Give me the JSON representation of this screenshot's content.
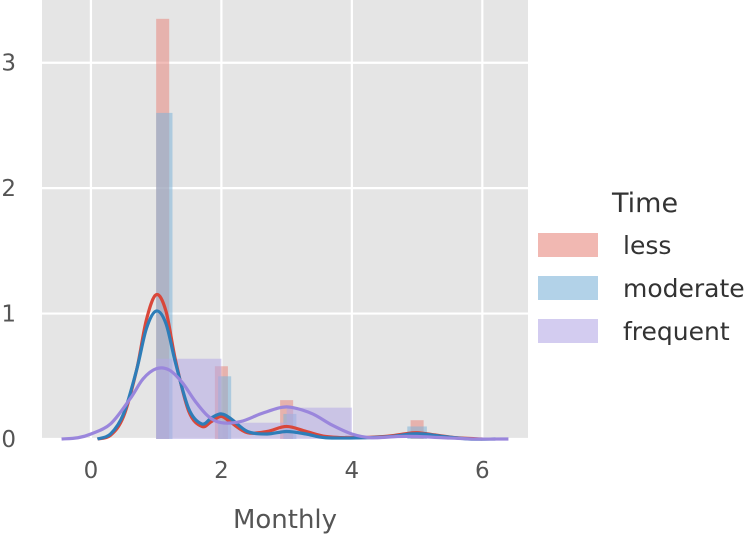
{
  "chart_data": {
    "type": "histogram+kde",
    "xlabel": "Monthly",
    "ylabel": "",
    "xlim": [
      -0.75,
      6.7
    ],
    "ylim": [
      0,
      3.5
    ],
    "xticks": [
      0,
      2,
      4,
      6
    ],
    "yticks": [
      0,
      1,
      2,
      3
    ],
    "grid": true,
    "legend": {
      "title": "Time",
      "placement": "right"
    },
    "series": [
      {
        "name": "less",
        "color": "#E8897F",
        "line_color": "#D9473A",
        "bars": [
          {
            "x0": 1.0,
            "x1": 1.2,
            "y": 3.35
          },
          {
            "x0": 1.9,
            "x1": 2.1,
            "y": 0.58
          },
          {
            "x0": 2.9,
            "x1": 3.1,
            "y": 0.31
          },
          {
            "x0": 3.9,
            "x1": 4.1,
            "y": 0.03
          },
          {
            "x0": 4.9,
            "x1": 5.1,
            "y": 0.15
          }
        ],
        "kde": [
          [
            0.1,
            0
          ],
          [
            0.3,
            0.03
          ],
          [
            0.5,
            0.18
          ],
          [
            0.7,
            0.55
          ],
          [
            0.85,
            0.95
          ],
          [
            1.0,
            1.15
          ],
          [
            1.15,
            1.02
          ],
          [
            1.3,
            0.62
          ],
          [
            1.5,
            0.22
          ],
          [
            1.7,
            0.1
          ],
          [
            1.85,
            0.14
          ],
          [
            2.0,
            0.18
          ],
          [
            2.15,
            0.13
          ],
          [
            2.4,
            0.05
          ],
          [
            2.7,
            0.06
          ],
          [
            3.0,
            0.1
          ],
          [
            3.3,
            0.06
          ],
          [
            3.6,
            0.02
          ],
          [
            4.0,
            0.01
          ],
          [
            4.5,
            0.02
          ],
          [
            4.8,
            0.04
          ],
          [
            5.0,
            0.05
          ],
          [
            5.3,
            0.03
          ],
          [
            5.6,
            0.01
          ],
          [
            6.0,
            0
          ]
        ]
      },
      {
        "name": "moderate",
        "color": "#7FB4D9",
        "line_color": "#2E7DB8",
        "bars": [
          {
            "x0": 1.0,
            "x1": 1.25,
            "y": 2.6
          },
          {
            "x0": 1.95,
            "x1": 2.15,
            "y": 0.5
          },
          {
            "x0": 2.95,
            "x1": 3.15,
            "y": 0.2
          },
          {
            "x0": 4.85,
            "x1": 5.15,
            "y": 0.1
          }
        ],
        "kde": [
          [
            0.1,
            0
          ],
          [
            0.3,
            0.04
          ],
          [
            0.5,
            0.2
          ],
          [
            0.7,
            0.55
          ],
          [
            0.85,
            0.88
          ],
          [
            1.0,
            1.02
          ],
          [
            1.15,
            0.92
          ],
          [
            1.3,
            0.6
          ],
          [
            1.5,
            0.24
          ],
          [
            1.7,
            0.12
          ],
          [
            1.85,
            0.17
          ],
          [
            2.0,
            0.2
          ],
          [
            2.15,
            0.16
          ],
          [
            2.4,
            0.06
          ],
          [
            2.7,
            0.04
          ],
          [
            3.0,
            0.06
          ],
          [
            3.3,
            0.04
          ],
          [
            3.6,
            0.01
          ],
          [
            4.2,
            0.01
          ],
          [
            4.6,
            0.02
          ],
          [
            4.9,
            0.04
          ],
          [
            5.1,
            0.04
          ],
          [
            5.4,
            0.02
          ],
          [
            5.8,
            0
          ],
          [
            6.2,
            0
          ]
        ]
      },
      {
        "name": "frequent",
        "color": "#B5AAE6",
        "line_color": "#9A86DC",
        "bars": [
          {
            "x0": 1.0,
            "x1": 2.0,
            "y": 0.64
          },
          {
            "x0": 2.0,
            "x1": 3.0,
            "y": 0.13
          },
          {
            "x0": 3.0,
            "x1": 4.0,
            "y": 0.25
          },
          {
            "x0": 4.0,
            "x1": 5.0,
            "y": 0.0
          },
          {
            "x0": 5.0,
            "x1": 6.0,
            "y": 0.0
          }
        ],
        "kde": [
          [
            -0.45,
            0
          ],
          [
            -0.2,
            0.01
          ],
          [
            0.0,
            0.04
          ],
          [
            0.3,
            0.12
          ],
          [
            0.6,
            0.32
          ],
          [
            0.8,
            0.48
          ],
          [
            1.0,
            0.56
          ],
          [
            1.2,
            0.55
          ],
          [
            1.4,
            0.45
          ],
          [
            1.6,
            0.3
          ],
          [
            1.8,
            0.18
          ],
          [
            2.0,
            0.13
          ],
          [
            2.3,
            0.14
          ],
          [
            2.6,
            0.2
          ],
          [
            2.9,
            0.25
          ],
          [
            3.1,
            0.25
          ],
          [
            3.4,
            0.2
          ],
          [
            3.7,
            0.11
          ],
          [
            4.0,
            0.04
          ],
          [
            4.3,
            0.01
          ],
          [
            4.7,
            0.02
          ],
          [
            5.0,
            0.02
          ],
          [
            5.4,
            0.01
          ],
          [
            5.9,
            0
          ],
          [
            6.4,
            0
          ]
        ]
      }
    ]
  }
}
